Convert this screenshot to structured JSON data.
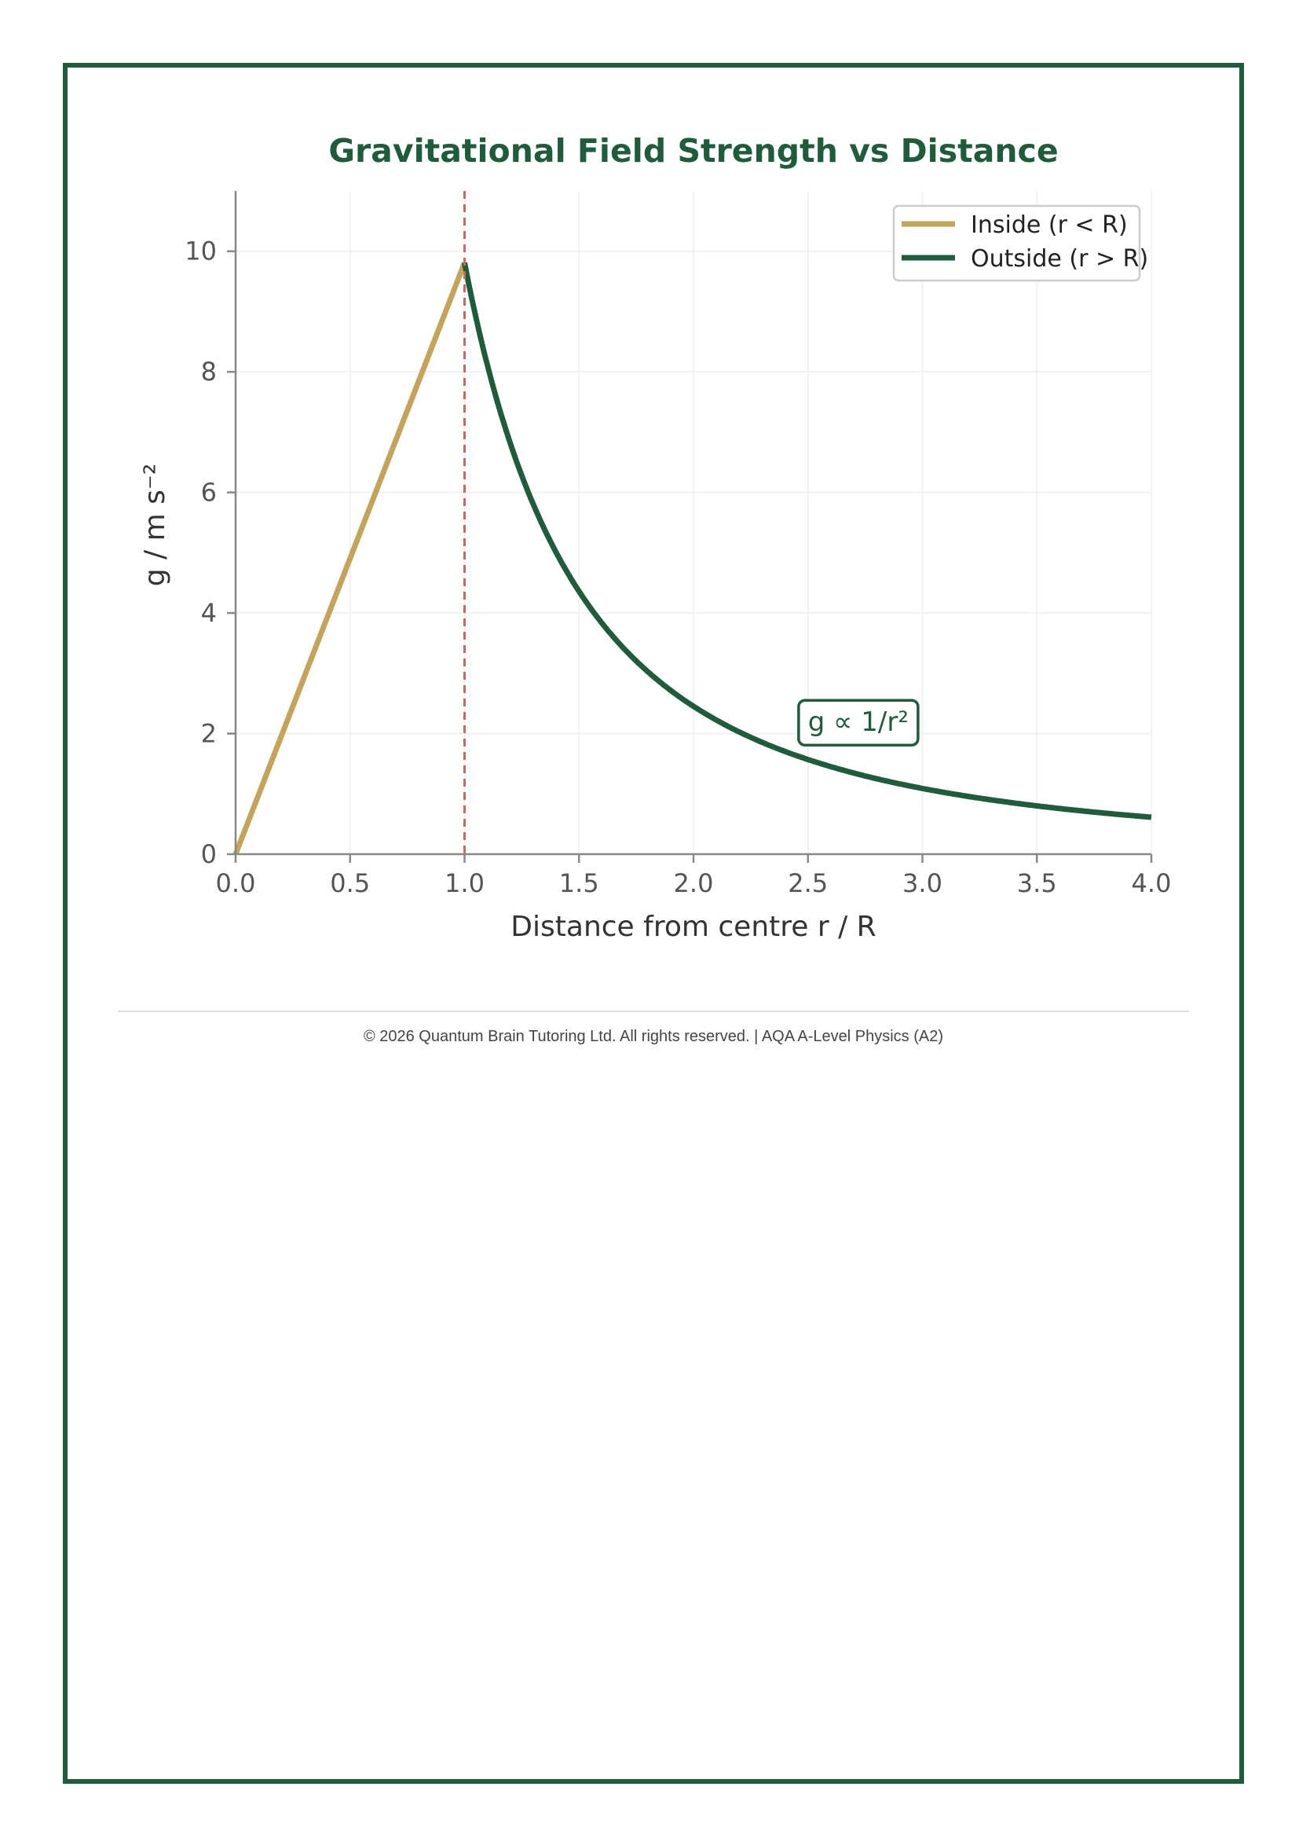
{
  "footer": {
    "copyright": "© 2026 Quantum Brain Tutoring Ltd. All rights reserved. | AQA A-Level Physics (A2)"
  },
  "colors": {
    "frame": "#1e5c3b",
    "inside": "#c4a35a",
    "outside": "#1e5c3b",
    "boundary": "#c9695f",
    "grid": "#eeeeee",
    "axis": "#888888"
  },
  "chart_data": {
    "type": "line",
    "title": "Gravitational Field Strength vs Distance",
    "xlabel": "Distance from centre r / R",
    "ylabel": "g / m s⁻²",
    "xlim": [
      0,
      4
    ],
    "ylim": [
      0,
      11
    ],
    "xticks": [
      0,
      0.5,
      1,
      1.5,
      2,
      2.5,
      3,
      3.5,
      4
    ],
    "xtick_labels": [
      "0.0",
      "0.5",
      "1.0",
      "1.5",
      "2.0",
      "2.5",
      "3.0",
      "3.5",
      "4.0"
    ],
    "yticks": [
      0,
      2,
      4,
      6,
      8,
      10
    ],
    "ytick_labels": [
      "0",
      "2",
      "4",
      "6",
      "8",
      "10"
    ],
    "grid": true,
    "legend_position": "top-right",
    "surface_g": 9.81,
    "boundary_x": 1.0,
    "series": [
      {
        "name": "Inside (r < R)",
        "color": "#c4a35a",
        "relation": "g = 9.81 × r/R",
        "x": [
          0.0,
          1.0
        ],
        "y": [
          0.0,
          9.81
        ]
      },
      {
        "name": "Outside (r > R)",
        "color": "#1e5c3b",
        "relation": "g = 9.81 / (r/R)²",
        "x": [
          1.0,
          1.25,
          1.5,
          2.0,
          2.5,
          3.0,
          3.5,
          4.0
        ],
        "y": [
          9.81,
          6.28,
          4.36,
          2.45,
          1.57,
          1.09,
          0.8,
          0.61
        ]
      }
    ],
    "annotation": {
      "text": "g ∝ 1/r²",
      "x": 2.72,
      "y": 2.2
    }
  }
}
